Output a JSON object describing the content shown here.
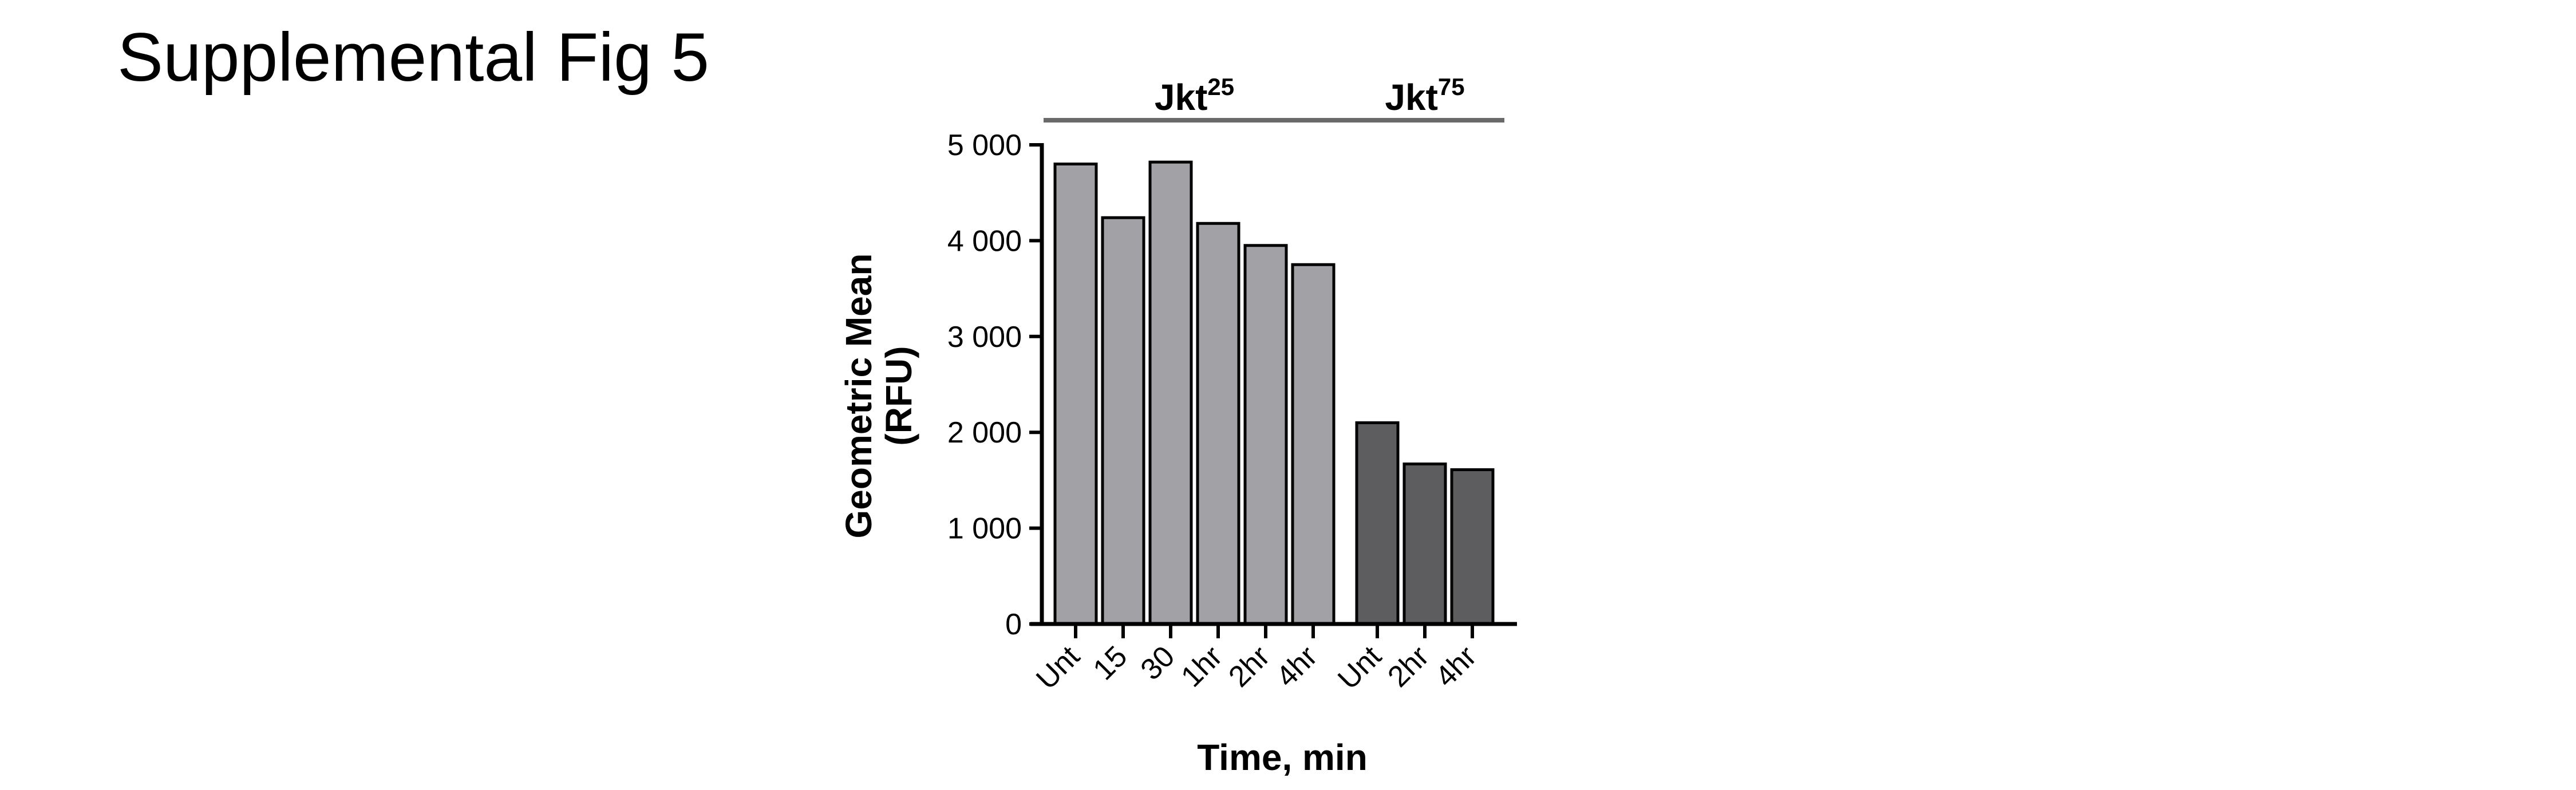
{
  "page": {
    "title": "Supplemental Fig 5"
  },
  "chart_data": {
    "type": "bar",
    "xlabel": "Time, min",
    "ylabel_lines": [
      "Geometric Mean",
      "(RFU)"
    ],
    "ylim": [
      0,
      5000
    ],
    "yticks": [
      0,
      1000,
      2000,
      3000,
      4000,
      5000
    ],
    "ytick_labels": [
      "0",
      "1 000",
      "2 000",
      "3 000",
      "4 000",
      "5 000"
    ],
    "groups": [
      {
        "label": "Jkt",
        "label_sup": "25",
        "color": "#a2a2a6",
        "categories": [
          "Unt",
          "15",
          "30",
          "1hr",
          "2hr",
          "4hr"
        ],
        "values": [
          4800,
          4240,
          4820,
          4180,
          3950,
          3750
        ]
      },
      {
        "label": "Jkt",
        "label_sup": "75",
        "color": "#5d5d5f",
        "categories": [
          "Unt",
          "2hr",
          "4hr"
        ],
        "values": [
          2100,
          1670,
          1610
        ]
      }
    ]
  }
}
